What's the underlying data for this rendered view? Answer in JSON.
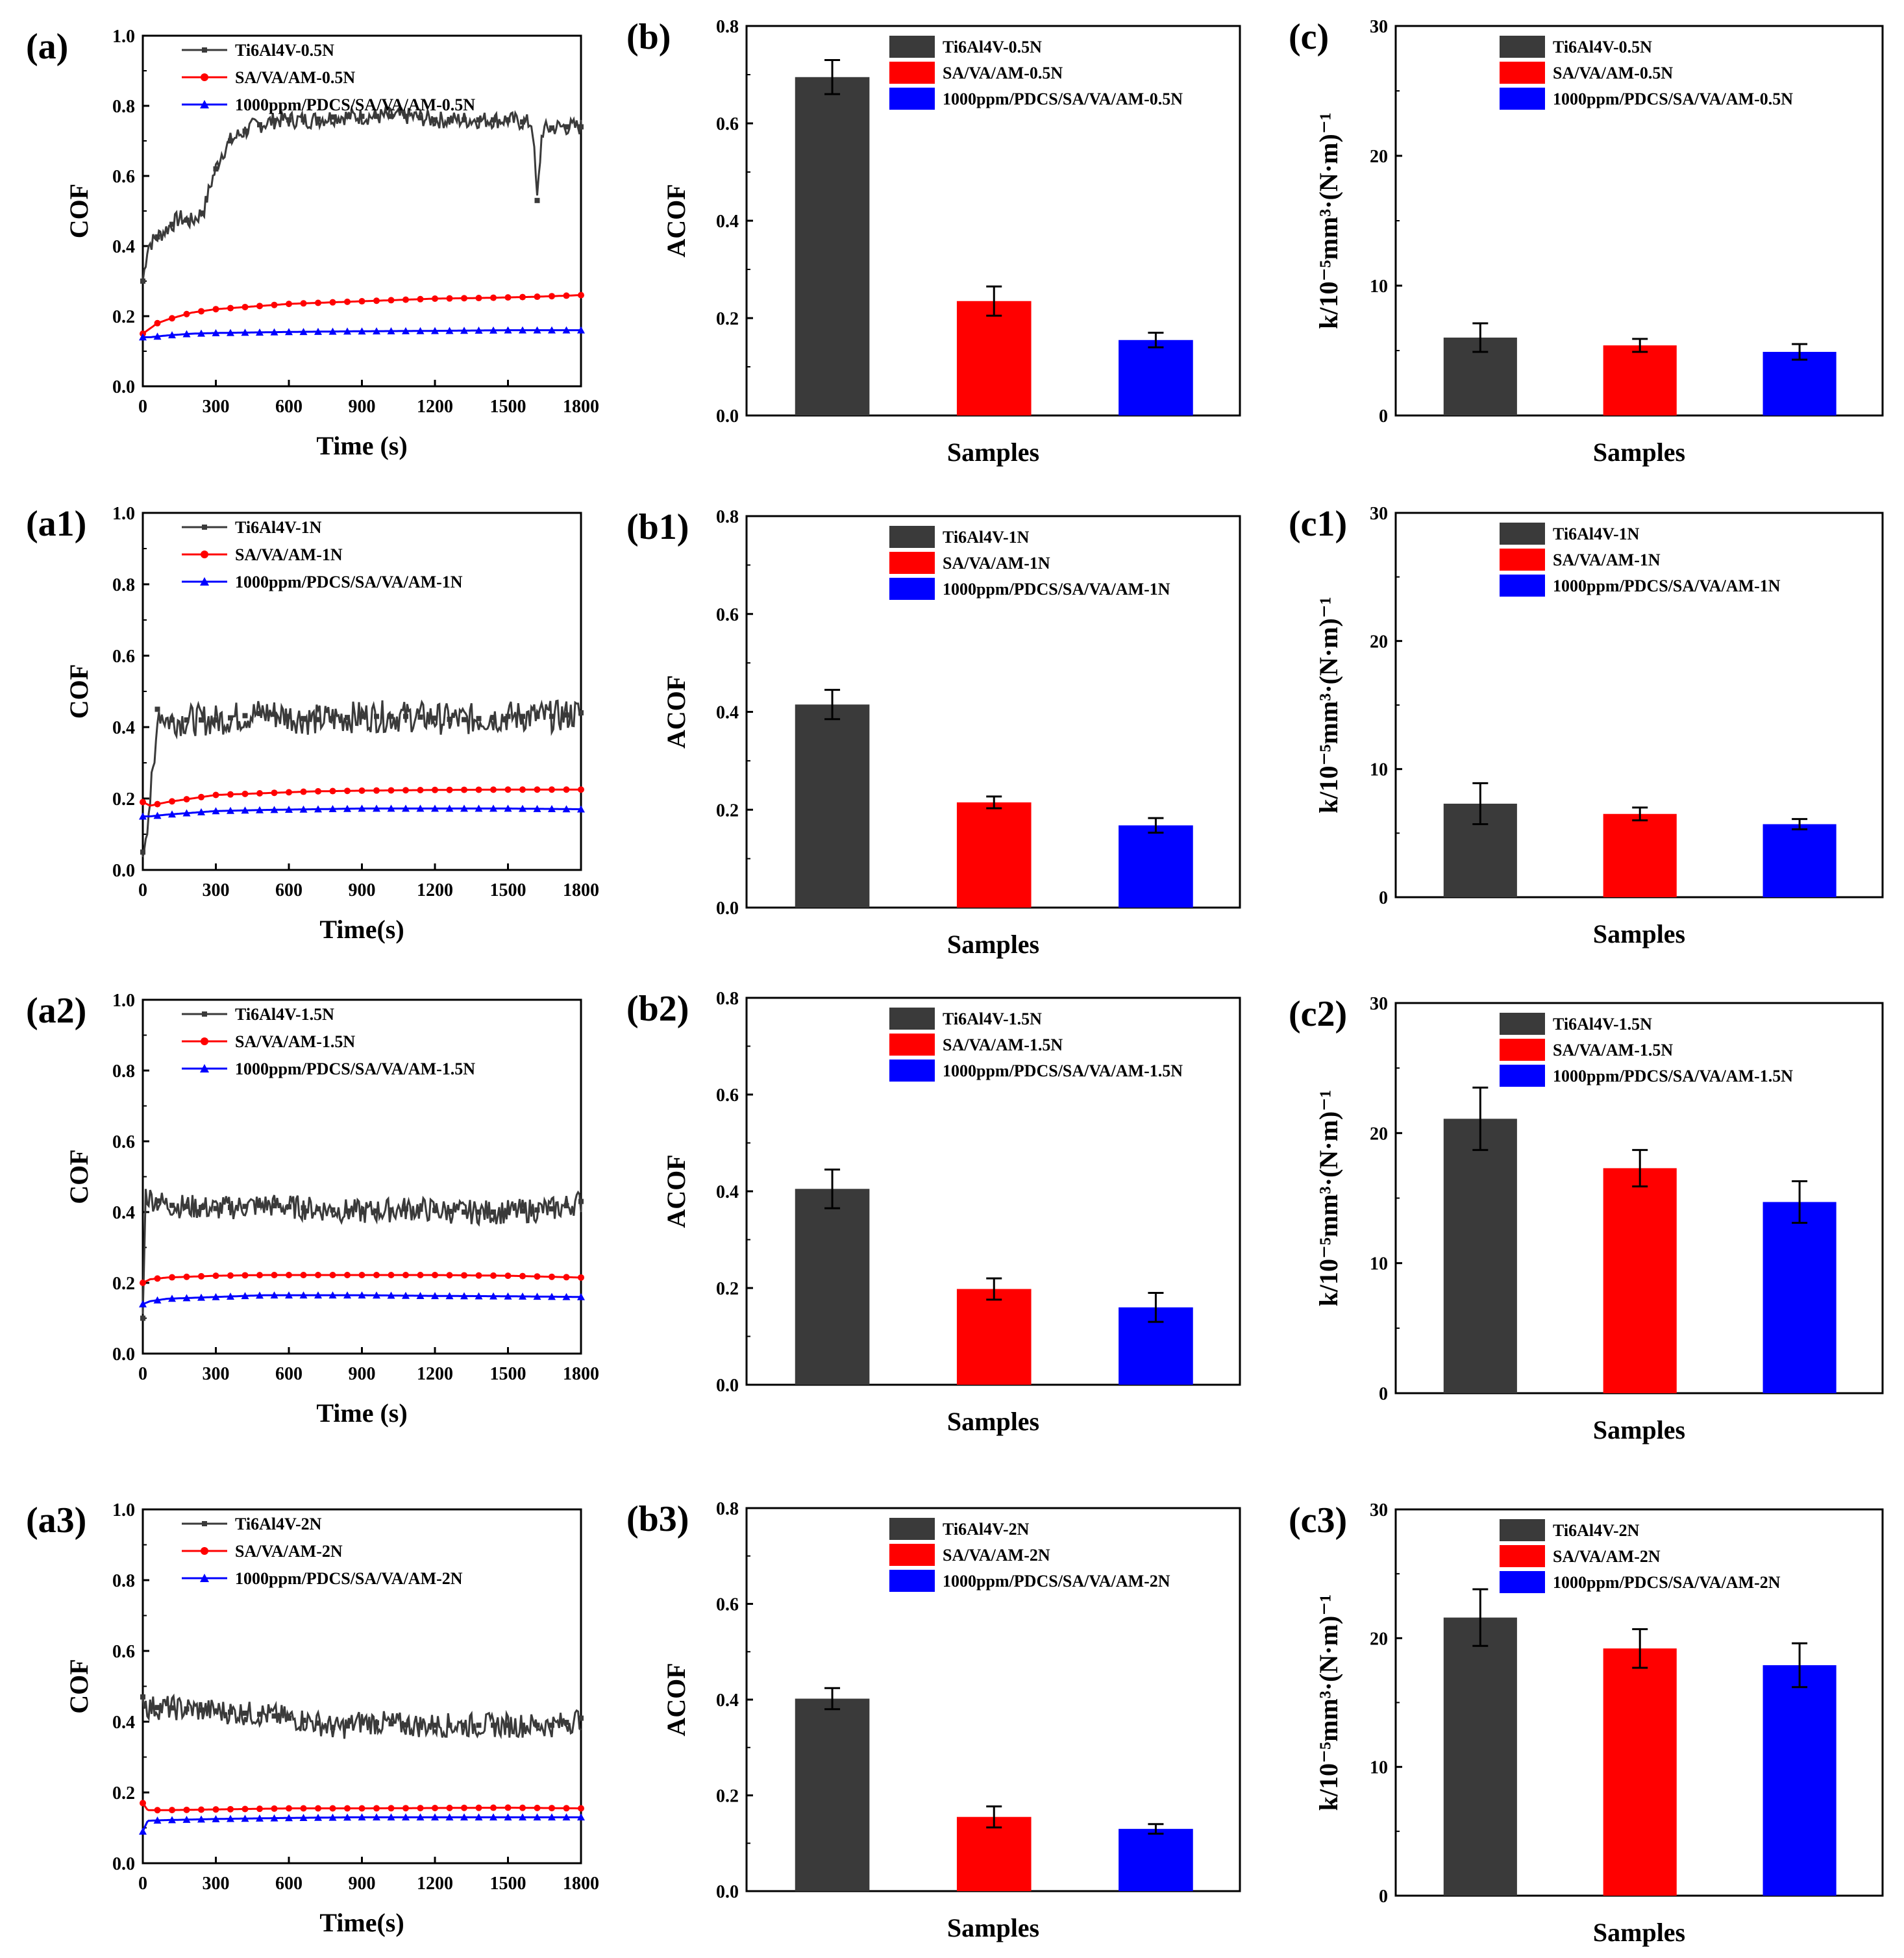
{
  "colors": {
    "ti": "#3a3a3a",
    "sa": "#ff0000",
    "pdcs": "#0000ff"
  },
  "chart_data": [
    {
      "id": "a",
      "panel_label": "(a)",
      "type": "line",
      "xlabel": "Time (s)",
      "ylabel": "COF",
      "xlim": [
        0,
        1800
      ],
      "ylim": [
        0,
        1.0
      ],
      "xticks": [
        "0",
        "300",
        "600",
        "900",
        "1200",
        "1500",
        "1800"
      ],
      "yticks": [
        "0.0",
        "0.2",
        "0.4",
        "0.6",
        "0.8",
        "1.0"
      ],
      "legend": [
        "Ti6Al4V-0.5N",
        "SA/VA/AM-0.5N",
        "1000ppm/PDCS/SA/VA/AM-0.5N"
      ],
      "series": [
        {
          "name": "Ti6Al4V-0.5N",
          "x": [
            0,
            20,
            50,
            100,
            150,
            200,
            250,
            280,
            320,
            360,
            400,
            450,
            500,
            550,
            600,
            700,
            800,
            900,
            1000,
            1100,
            1200,
            1300,
            1400,
            1500,
            1600,
            1620,
            1640,
            1700,
            1800
          ],
          "y": [
            0.3,
            0.4,
            0.42,
            0.45,
            0.48,
            0.47,
            0.5,
            0.58,
            0.66,
            0.7,
            0.72,
            0.74,
            0.75,
            0.76,
            0.76,
            0.76,
            0.77,
            0.77,
            0.77,
            0.77,
            0.76,
            0.76,
            0.76,
            0.76,
            0.75,
            0.53,
            0.73,
            0.74,
            0.74
          ],
          "noise": 0.025
        },
        {
          "name": "SA/VA/AM-0.5N",
          "x": [
            0,
            20,
            60,
            100,
            200,
            300,
            400,
            500,
            600,
            800,
            1000,
            1200,
            1400,
            1600,
            1800
          ],
          "y": [
            0.15,
            0.16,
            0.18,
            0.19,
            0.21,
            0.22,
            0.225,
            0.23,
            0.235,
            0.24,
            0.245,
            0.25,
            0.252,
            0.255,
            0.26
          ],
          "noise": 0.0
        },
        {
          "name": "1000ppm/PDCS/SA/VA/AM-0.5N",
          "x": [
            0,
            30,
            100,
            200,
            300,
            600,
            900,
            1200,
            1500,
            1800
          ],
          "y": [
            0.14,
            0.14,
            0.145,
            0.15,
            0.152,
            0.155,
            0.157,
            0.158,
            0.16,
            0.16
          ],
          "noise": 0.0
        }
      ]
    },
    {
      "id": "b",
      "panel_label": "(b)",
      "type": "bar",
      "xlabel": "Samples",
      "ylabel": "ACOF",
      "ylim": [
        0,
        0.8
      ],
      "yticks": [
        "0.0",
        "0.2",
        "0.4",
        "0.6",
        "0.8"
      ],
      "categories": [
        "Ti6Al4V-0.5N",
        "SA/VA/AM-0.5N",
        "1000ppm/PDCS/SA/VA/AM-0.5N"
      ],
      "values": [
        0.695,
        0.235,
        0.155
      ],
      "errors": [
        0.035,
        0.03,
        0.015
      ]
    },
    {
      "id": "c",
      "panel_label": "(c)",
      "type": "bar",
      "xlabel": "Samples",
      "ylabel": "k/10⁻⁵mm³·(N·m)⁻¹",
      "ylim": [
        0,
        30
      ],
      "yticks": [
        "0",
        "10",
        "20",
        "30"
      ],
      "categories": [
        "Ti6Al4V-0.5N",
        "SA/VA/AM-0.5N",
        "1000ppm/PDCS/SA/VA/AM-0.5N"
      ],
      "values": [
        6.0,
        5.4,
        4.9
      ],
      "errors": [
        1.1,
        0.5,
        0.6
      ]
    },
    {
      "id": "a1",
      "panel_label": "(a1)",
      "type": "line",
      "xlabel": "Time(s)",
      "ylabel": "COF",
      "xlim": [
        0,
        1800
      ],
      "ylim": [
        0,
        1.0
      ],
      "xticks": [
        "0",
        "300",
        "600",
        "900",
        "1200",
        "1500",
        "1800"
      ],
      "yticks": [
        "0.0",
        "0.2",
        "0.4",
        "0.6",
        "0.8",
        "1.0"
      ],
      "legend": [
        "Ti6Al4V-1N",
        "SA/VA/AM-1N",
        "1000ppm/PDCS/SA/VA/AM-1N"
      ],
      "series": [
        {
          "name": "Ti6Al4V-1N",
          "x": [
            0,
            20,
            50,
            60,
            100,
            300,
            500,
            700,
            900,
            1100,
            1300,
            1500,
            1700,
            1800
          ],
          "y": [
            0.05,
            0.15,
            0.3,
            0.45,
            0.42,
            0.42,
            0.44,
            0.42,
            0.43,
            0.43,
            0.42,
            0.43,
            0.43,
            0.44
          ],
          "noise": 0.045
        },
        {
          "name": "SA/VA/AM-1N",
          "x": [
            0,
            30,
            100,
            200,
            300,
            500,
            700,
            900,
            1200,
            1500,
            1800
          ],
          "y": [
            0.19,
            0.18,
            0.19,
            0.2,
            0.21,
            0.215,
            0.22,
            0.222,
            0.224,
            0.225,
            0.225
          ],
          "noise": 0.0
        },
        {
          "name": "1000ppm/PDCS/SA/VA/AM-1N",
          "x": [
            0,
            30,
            100,
            200,
            300,
            500,
            700,
            900,
            1200,
            1500,
            1800
          ],
          "y": [
            0.15,
            0.15,
            0.155,
            0.16,
            0.165,
            0.168,
            0.17,
            0.172,
            0.172,
            0.172,
            0.17
          ],
          "noise": 0.0
        }
      ]
    },
    {
      "id": "b1",
      "panel_label": "(b1)",
      "type": "bar",
      "xlabel": "Samples",
      "ylabel": "ACOF",
      "ylim": [
        0,
        0.8
      ],
      "yticks": [
        "0.0",
        "0.2",
        "0.4",
        "0.6",
        "0.8"
      ],
      "categories": [
        "Ti6Al4V-1N",
        "SA/VA/AM-1N",
        "1000ppm/PDCS/SA/VA/AM-1N"
      ],
      "values": [
        0.415,
        0.215,
        0.168
      ],
      "errors": [
        0.03,
        0.012,
        0.015
      ]
    },
    {
      "id": "c1",
      "panel_label": "(c1)",
      "type": "bar",
      "xlabel": "Samples",
      "ylabel": "k/10⁻⁵mm³·(N·m)⁻¹",
      "ylim": [
        0,
        30
      ],
      "yticks": [
        "0",
        "10",
        "20",
        "30"
      ],
      "categories": [
        "Ti6Al4V-1N",
        "SA/VA/AM-1N",
        "1000ppm/PDCS/SA/VA/AM-1N"
      ],
      "values": [
        7.3,
        6.5,
        5.7
      ],
      "errors": [
        1.6,
        0.5,
        0.4
      ]
    },
    {
      "id": "a2",
      "panel_label": "(a2)",
      "type": "line",
      "xlabel": "Time (s)",
      "ylabel": "COF",
      "xlim": [
        0,
        1800
      ],
      "ylim": [
        0,
        1.0
      ],
      "xticks": [
        "0",
        "300",
        "600",
        "900",
        "1200",
        "1500",
        "1800"
      ],
      "yticks": [
        "0.0",
        "0.2",
        "0.4",
        "0.6",
        "0.8",
        "1.0"
      ],
      "legend": [
        "Ti6Al4V-1.5N",
        "SA/VA/AM-1.5N",
        "1000ppm/PDCS/SA/VA/AM-1.5N"
      ],
      "series": [
        {
          "name": "Ti6Al4V-1.5N",
          "x": [
            0,
            10,
            30,
            100,
            300,
            500,
            700,
            900,
            1100,
            1300,
            1500,
            1700,
            1800
          ],
          "y": [
            0.1,
            0.45,
            0.44,
            0.42,
            0.41,
            0.42,
            0.41,
            0.4,
            0.41,
            0.4,
            0.4,
            0.41,
            0.43
          ],
          "noise": 0.035
        },
        {
          "name": "SA/VA/AM-1.5N",
          "x": [
            0,
            30,
            100,
            300,
            500,
            700,
            900,
            1200,
            1500,
            1800
          ],
          "y": [
            0.2,
            0.21,
            0.215,
            0.22,
            0.222,
            0.222,
            0.222,
            0.222,
            0.22,
            0.215
          ],
          "noise": 0.0
        },
        {
          "name": "1000ppm/PDCS/SA/VA/AM-1.5N",
          "x": [
            0,
            30,
            100,
            300,
            500,
            700,
            900,
            1200,
            1500,
            1800
          ],
          "y": [
            0.14,
            0.148,
            0.155,
            0.16,
            0.165,
            0.165,
            0.165,
            0.163,
            0.162,
            0.16
          ],
          "noise": 0.0
        }
      ]
    },
    {
      "id": "b2",
      "panel_label": "(b2)",
      "type": "bar",
      "xlabel": "Samples",
      "ylabel": "ACOF",
      "ylim": [
        0,
        0.8
      ],
      "yticks": [
        "0.0",
        "0.2",
        "0.4",
        "0.6",
        "0.8"
      ],
      "categories": [
        "Ti6Al4V-1.5N",
        "SA/VA/AM-1.5N",
        "1000ppm/PDCS/SA/VA/AM-1.5N"
      ],
      "values": [
        0.405,
        0.198,
        0.16
      ],
      "errors": [
        0.04,
        0.022,
        0.03
      ]
    },
    {
      "id": "c2",
      "panel_label": "(c2)",
      "type": "bar",
      "xlabel": "Samples",
      "ylabel": "k/10⁻⁵mm³·(N·m)⁻¹",
      "ylim": [
        0,
        30
      ],
      "yticks": [
        "0",
        "10",
        "20",
        "30"
      ],
      "categories": [
        "Ti6Al4V-1.5N",
        "SA/VA/AM-1.5N",
        "1000ppm/PDCS/SA/VA/AM-1.5N"
      ],
      "values": [
        21.1,
        17.3,
        14.7
      ],
      "errors": [
        2.4,
        1.4,
        1.6
      ]
    },
    {
      "id": "a3",
      "panel_label": "(a3)",
      "type": "line",
      "xlabel": "Time(s)",
      "ylabel": "COF",
      "xlim": [
        0,
        1800
      ],
      "ylim": [
        0,
        1.0
      ],
      "xticks": [
        "0",
        "300",
        "600",
        "900",
        "1200",
        "1500",
        "1800"
      ],
      "yticks": [
        "0.0",
        "0.2",
        "0.4",
        "0.6",
        "0.8",
        "1.0"
      ],
      "legend": [
        "Ti6Al4V-2N",
        "SA/VA/AM-2N",
        "1000ppm/PDCS/SA/VA/AM-2N"
      ],
      "series": [
        {
          "name": "Ti6Al4V-2N",
          "x": [
            0,
            20,
            100,
            300,
            500,
            700,
            800,
            900,
            1100,
            1300,
            1500,
            1700,
            1800
          ],
          "y": [
            0.47,
            0.44,
            0.44,
            0.43,
            0.42,
            0.4,
            0.38,
            0.4,
            0.39,
            0.39,
            0.39,
            0.39,
            0.41
          ],
          "noise": 0.035
        },
        {
          "name": "SA/VA/AM-2N",
          "x": [
            0,
            20,
            100,
            300,
            600,
            900,
            1200,
            1500,
            1800
          ],
          "y": [
            0.17,
            0.15,
            0.15,
            0.152,
            0.155,
            0.155,
            0.156,
            0.157,
            0.155
          ],
          "noise": 0.0
        },
        {
          "name": "1000ppm/PDCS/SA/VA/AM-2N",
          "x": [
            0,
            20,
            100,
            300,
            600,
            900,
            1200,
            1500,
            1800
          ],
          "y": [
            0.09,
            0.12,
            0.122,
            0.125,
            0.128,
            0.13,
            0.13,
            0.13,
            0.13
          ],
          "noise": 0.0
        }
      ]
    },
    {
      "id": "b3",
      "panel_label": "(b3)",
      "type": "bar",
      "xlabel": "Samples",
      "ylabel": "ACOF",
      "ylim": [
        0,
        0.8
      ],
      "yticks": [
        "0.0",
        "0.2",
        "0.4",
        "0.6",
        "0.8"
      ],
      "categories": [
        "Ti6Al4V-2N",
        "SA/VA/AM-2N",
        "1000ppm/PDCS/SA/VA/AM-2N"
      ],
      "values": [
        0.402,
        0.155,
        0.13
      ],
      "errors": [
        0.022,
        0.022,
        0.01
      ]
    },
    {
      "id": "c3",
      "panel_label": "(c3)",
      "type": "bar",
      "xlabel": "Samples",
      "ylabel": "k/10⁻⁵mm³·(N·m)⁻¹",
      "ylim": [
        0,
        30
      ],
      "yticks": [
        "0",
        "10",
        "20",
        "30"
      ],
      "categories": [
        "Ti6Al4V-2N",
        "SA/VA/AM-2N",
        "1000ppm/PDCS/SA/VA/AM-2N"
      ],
      "values": [
        21.6,
        19.2,
        17.9
      ],
      "errors": [
        2.2,
        1.5,
        1.7
      ]
    }
  ]
}
